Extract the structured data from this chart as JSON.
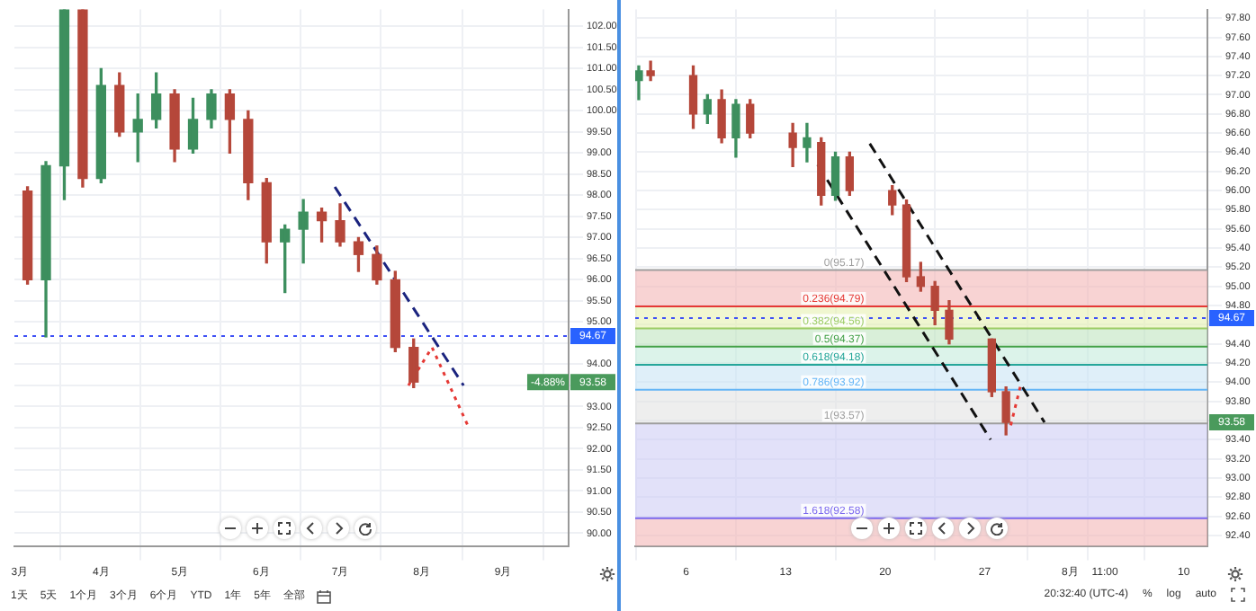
{
  "chart_data": [
    {
      "type": "candlestick",
      "x": [
        "--03-04",
        "--03-11",
        "--03-18",
        "--03-25",
        "--04-01",
        "--04-08",
        "--04-15",
        "--04-22",
        "--04-29",
        "--05-06",
        "--05-13",
        "--05-20",
        "--05-27",
        "--06-03",
        "--06-10",
        "--06-17",
        "--06-24",
        "--07-01",
        "--07-08",
        "--07-15",
        "--07-22",
        "--07-29"
      ],
      "ohlc": [
        [
          98.1,
          98.2,
          95.9,
          96.0
        ],
        [
          96.0,
          98.8,
          94.65,
          98.7
        ],
        [
          98.7,
          102.9,
          97.9,
          102.8
        ],
        [
          102.8,
          102.9,
          98.2,
          98.4
        ],
        [
          98.4,
          101.0,
          98.3,
          100.6
        ],
        [
          100.6,
          100.9,
          99.4,
          99.5
        ],
        [
          99.5,
          100.4,
          98.8,
          99.8
        ],
        [
          99.8,
          100.9,
          99.6,
          100.4
        ],
        [
          100.4,
          100.5,
          98.8,
          99.1
        ],
        [
          99.1,
          100.3,
          99.0,
          99.8
        ],
        [
          99.8,
          100.5,
          99.6,
          100.4
        ],
        [
          100.4,
          100.5,
          99.0,
          99.8
        ],
        [
          99.8,
          100.0,
          97.9,
          98.3
        ],
        [
          98.3,
          98.4,
          96.4,
          96.9
        ],
        [
          96.9,
          97.3,
          95.7,
          97.2
        ],
        [
          97.2,
          97.9,
          96.4,
          97.6
        ],
        [
          97.6,
          97.7,
          96.9,
          97.4
        ],
        [
          97.4,
          97.8,
          96.8,
          96.9
        ],
        [
          96.9,
          97.0,
          96.2,
          96.6
        ],
        [
          96.6,
          96.8,
          95.9,
          96.0
        ],
        [
          96.0,
          96.2,
          94.3,
          94.4
        ],
        [
          94.4,
          94.6,
          93.45,
          93.58
        ]
      ],
      "colors": [
        "#b5473a",
        "#3d8f5e",
        "#3d8f5e",
        "#b5473a",
        "#3d8f5e",
        "#b5473a",
        "#3d8f5e",
        "#3d8f5e",
        "#b5473a",
        "#3d8f5e",
        "#3d8f5e",
        "#b5473a",
        "#b5473a",
        "#b5473a",
        "#3d8f5e",
        "#3d8f5e",
        "#b5473a",
        "#b5473a",
        "#b5473a",
        "#b5473a",
        "#b5473a",
        "#b5473a"
      ],
      "series": [
        {
          "type": "line",
          "x": [
            "--06-29",
            "--08-17"
          ],
          "values": [
            98.2,
            93.5
          ],
          "color": "#1a237e",
          "line_style": "dashed"
        },
        {
          "type": "line",
          "x": [
            "--07-27",
            "--08-05",
            "--08-19"
          ],
          "values": [
            93.5,
            94.4,
            92.5
          ],
          "color": "#e53935",
          "line_style": "dotted"
        }
      ],
      "xlim": [
        "--02-27",
        "--09-26"
      ],
      "xticks": [
        {
          "value": "--03-01",
          "label": "3月"
        },
        {
          "value": "--04-01",
          "label": "4月"
        },
        {
          "value": "--05-01",
          "label": "5月"
        },
        {
          "value": "--06-01",
          "label": "6月"
        },
        {
          "value": "--07-01",
          "label": "7月"
        },
        {
          "value": "--08-01",
          "label": "8月"
        },
        {
          "value": "--09-01",
          "label": "9月"
        }
      ],
      "ylim": [
        89.7,
        102.4
      ],
      "yticks": [
        {
          "value": 90,
          "label": "90.00"
        },
        {
          "value": 90.5,
          "label": "90.50"
        },
        {
          "value": 91,
          "label": "91.00"
        },
        {
          "value": 91.5,
          "label": "91.50"
        },
        {
          "value": 92,
          "label": "92.00"
        },
        {
          "value": 92.5,
          "label": "92.50"
        },
        {
          "value": 93,
          "label": "93.00"
        },
        {
          "value": 93.5,
          "label": null
        },
        {
          "value": 94,
          "label": "94.00"
        },
        {
          "value": 94.5,
          "label": null
        },
        {
          "value": 95,
          "label": "95.00"
        },
        {
          "value": 95.5,
          "label": "95.50"
        },
        {
          "value": 96,
          "label": "96.00"
        },
        {
          "value": 96.5,
          "label": "96.50"
        },
        {
          "value": 97,
          "label": "97.00"
        },
        {
          "value": 97.5,
          "label": "97.50"
        },
        {
          "value": 98,
          "label": "98.00"
        },
        {
          "value": 98.5,
          "label": "98.50"
        },
        {
          "value": 99,
          "label": "99.00"
        },
        {
          "value": 99.5,
          "label": "99.50"
        },
        {
          "value": 100,
          "label": "100.00"
        },
        {
          "value": 100.5,
          "label": "100.50"
        },
        {
          "value": 101,
          "label": "101.00"
        },
        {
          "value": 101.5,
          "label": "101.50"
        },
        {
          "value": 102,
          "label": "102.00"
        }
      ],
      "grid": true,
      "ref_lines": [
        {
          "axis": "y",
          "value": 94.67,
          "label": "94.67",
          "color": "#3f51f5",
          "line_style": "dotted"
        }
      ],
      "annotations": [
        "93.58",
        "-4.88%",
        "1天",
        "5天",
        "1个月",
        "3个月",
        "6个月",
        "YTD",
        "1年",
        "5年",
        "全部"
      ]
    },
    {
      "type": "candlestick",
      "x": [
        "--07-02T16:00",
        "--07-03T12:00",
        "--07-06T12:00",
        "--07-07T12:00",
        "--07-08T12:00",
        "--07-09T12:00",
        "--07-10T12:00",
        "--07-13T12:00",
        "--07-14T12:00",
        "--07-15T12:00",
        "--07-16T12:00",
        "--07-17T12:00",
        "--07-20T12:00",
        "--07-21T12:00",
        "--07-22T12:00",
        "--07-23T12:00",
        "--07-24T12:00",
        "--07-27T12:00",
        "--07-28T12:00"
      ],
      "ohlc": [
        [
          97.15,
          97.3,
          96.95,
          97.25
        ],
        [
          97.25,
          97.35,
          97.15,
          97.2
        ],
        [
          97.2,
          97.3,
          96.65,
          96.8
        ],
        [
          96.8,
          97.0,
          96.7,
          96.95
        ],
        [
          96.95,
          97.05,
          96.5,
          96.55
        ],
        [
          96.55,
          96.95,
          96.35,
          96.9
        ],
        [
          96.9,
          96.95,
          96.55,
          96.6
        ],
        [
          96.6,
          96.7,
          96.25,
          96.45
        ],
        [
          96.45,
          96.7,
          96.3,
          96.55
        ],
        [
          96.5,
          96.55,
          95.85,
          95.95
        ],
        [
          95.95,
          96.4,
          95.9,
          96.35
        ],
        [
          96.35,
          96.4,
          95.95,
          96.0
        ],
        [
          96.0,
          96.05,
          95.75,
          95.85
        ],
        [
          95.85,
          95.9,
          95.05,
          95.1
        ],
        [
          95.1,
          95.25,
          94.95,
          95.0
        ],
        [
          95.0,
          95.05,
          94.6,
          94.75
        ],
        [
          94.75,
          94.85,
          94.4,
          94.45
        ],
        [
          94.45,
          94.45,
          93.85,
          93.9
        ],
        [
          93.9,
          93.95,
          93.45,
          93.58
        ]
      ],
      "colors": [
        "#3d8f5e",
        "#b5473a",
        "#b5473a",
        "#3d8f5e",
        "#b5473a",
        "#3d8f5e",
        "#b5473a",
        "#b5473a",
        "#3d8f5e",
        "#b5473a",
        "#3d8f5e",
        "#b5473a",
        "#b5473a",
        "#b5473a",
        "#b5473a",
        "#b5473a",
        "#b5473a",
        "#b5473a",
        "#b5473a"
      ],
      "series": [
        {
          "type": "line",
          "x": [
            "--07-15T06:00",
            "--07-27T10:00"
          ],
          "values": [
            96.27,
            93.4
          ],
          "color": "#111111",
          "line_style": "dashed"
        },
        {
          "type": "line",
          "x": [
            "--07-18T22:00",
            "--07-31T05:00"
          ],
          "values": [
            96.49,
            93.58
          ],
          "color": "#111111",
          "line_style": "dashed"
        },
        {
          "type": "line",
          "x": [
            "--07-28T20:00",
            "--07-29T12:00"
          ],
          "values": [
            93.55,
            93.95
          ],
          "color": "#e53935",
          "line_style": "dotted"
        }
      ],
      "xlim": [
        "--07-02T10:00",
        "--08-11T16:00"
      ],
      "xticks": [
        {
          "value": "--07-06",
          "label": "6"
        },
        {
          "value": "--07-13",
          "label": "13"
        },
        {
          "value": "--07-20",
          "label": "20"
        },
        {
          "value": "--07-27",
          "label": "27"
        },
        {
          "value": "--08-02",
          "label": "8月"
        },
        {
          "value": "--08-04T11:00",
          "label": "11:00"
        },
        {
          "value": "--08-10",
          "label": "10"
        }
      ],
      "ylim": [
        92.29,
        97.89
      ],
      "yticks": [
        {
          "value": 92.4,
          "label": "92.40"
        },
        {
          "value": 92.6,
          "label": "92.60"
        },
        {
          "value": 92.8,
          "label": "92.80"
        },
        {
          "value": 93,
          "label": "93.00"
        },
        {
          "value": 93.2,
          "label": "93.20"
        },
        {
          "value": 93.4,
          "label": "93.40"
        },
        {
          "value": 93.6,
          "label": null
        },
        {
          "value": 93.8,
          "label": "93.80"
        },
        {
          "value": 94,
          "label": "94.00"
        },
        {
          "value": 94.2,
          "label": "94.20"
        },
        {
          "value": 94.4,
          "label": "94.40"
        },
        {
          "value": 94.6,
          "label": null
        },
        {
          "value": 94.8,
          "label": "94.80"
        },
        {
          "value": 95,
          "label": "95.00"
        },
        {
          "value": 95.2,
          "label": "95.20"
        },
        {
          "value": 95.4,
          "label": "95.40"
        },
        {
          "value": 95.6,
          "label": "95.60"
        },
        {
          "value": 95.8,
          "label": "95.80"
        },
        {
          "value": 96,
          "label": "96.00"
        },
        {
          "value": 96.2,
          "label": "96.20"
        },
        {
          "value": 96.4,
          "label": "96.40"
        },
        {
          "value": 96.6,
          "label": "96.60"
        },
        {
          "value": 96.8,
          "label": "96.80"
        },
        {
          "value": 97,
          "label": "97.00"
        },
        {
          "value": 97.2,
          "label": "97.20"
        },
        {
          "value": 97.4,
          "label": "97.40"
        },
        {
          "value": 97.6,
          "label": "97.60"
        },
        {
          "value": 97.8,
          "label": "97.80"
        }
      ],
      "grid": true,
      "ref_lines": [
        {
          "axis": "y",
          "value": 94.67,
          "label": "94.67",
          "color": "#3f51f5",
          "line_style": "dotted"
        },
        {
          "axis": "y",
          "value": 95.17,
          "label": "0(95.17)",
          "color": "#9e9e9e"
        },
        {
          "axis": "y",
          "value": 94.79,
          "label": "0.236(94.79)",
          "color": "#e53935"
        },
        {
          "axis": "y",
          "value": 94.56,
          "label": "0.382(94.56)",
          "color": "#9ccc65"
        },
        {
          "axis": "y",
          "value": 94.37,
          "label": "0.5(94.37)",
          "color": "#43a047"
        },
        {
          "axis": "y",
          "value": 94.18,
          "label": "0.618(94.18)",
          "color": "#26a69a"
        },
        {
          "axis": "y",
          "value": 93.92,
          "label": "0.786(93.92)",
          "color": "#64b5f6"
        },
        {
          "axis": "y",
          "value": 93.57,
          "label": "1(93.57)",
          "color": "#9e9e9e"
        },
        {
          "axis": "y",
          "value": 92.58,
          "label": "1.618(92.58)",
          "color": "#7b68ee"
        }
      ],
      "bands": [
        {
          "axis": "y",
          "from": 94.79,
          "to": 95.17,
          "color": "#f4b6b6"
        },
        {
          "axis": "y",
          "from": 94.56,
          "to": 94.79,
          "color": "#e6f0b0"
        },
        {
          "axis": "y",
          "from": 94.37,
          "to": 94.56,
          "color": "#bfe5bf"
        },
        {
          "axis": "y",
          "from": 94.18,
          "to": 94.37,
          "color": "#c4ebdc"
        },
        {
          "axis": "y",
          "from": 93.92,
          "to": 94.18,
          "color": "#c9e4f5"
        },
        {
          "axis": "y",
          "from": 93.57,
          "to": 93.92,
          "color": "#e3e3e3"
        },
        {
          "axis": "y",
          "from": 92.58,
          "to": 93.57,
          "color": "#cfcdf5"
        },
        {
          "axis": "y",
          "from": 92.29,
          "to": 92.58,
          "color": "#f4b6b6"
        }
      ],
      "annotations": [
        "93.58",
        "20:32:40 (UTC-4)",
        "%",
        "log",
        "auto"
      ]
    }
  ]
}
